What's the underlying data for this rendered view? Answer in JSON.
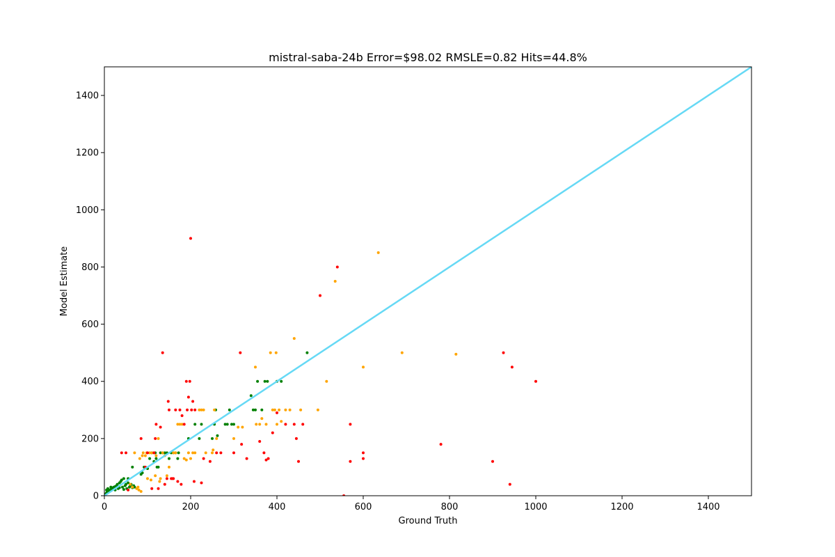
{
  "chart_data": {
    "type": "scatter",
    "title": "mistral-saba-24b Error=$98.02 RMSLE=0.82 Hits=44.8%",
    "xlabel": "Ground Truth",
    "ylabel": "Model Estimate",
    "xlim": [
      0,
      1500
    ],
    "ylim": [
      0,
      1500
    ],
    "xticks": [
      0,
      200,
      400,
      600,
      800,
      1000,
      1200,
      1400
    ],
    "yticks": [
      0,
      200,
      400,
      600,
      800,
      1000,
      1200,
      1400
    ],
    "grid": false,
    "reference_line": {
      "x": [
        0,
        1500
      ],
      "y": [
        0,
        1500
      ],
      "color": "#66d9f5"
    },
    "colors": {
      "green": "#008000",
      "orange": "#ffa500",
      "red": "#ff0000"
    },
    "points": {
      "green": [
        [
          2,
          5
        ],
        [
          4,
          8
        ],
        [
          6,
          12
        ],
        [
          8,
          15
        ],
        [
          10,
          18
        ],
        [
          12,
          20
        ],
        [
          15,
          22
        ],
        [
          18,
          25
        ],
        [
          20,
          28
        ],
        [
          22,
          30
        ],
        [
          25,
          32
        ],
        [
          28,
          35
        ],
        [
          30,
          40
        ],
        [
          32,
          25
        ],
        [
          35,
          45
        ],
        [
          38,
          50
        ],
        [
          40,
          55
        ],
        [
          42,
          30
        ],
        [
          45,
          60
        ],
        [
          48,
          35
        ],
        [
          50,
          40
        ],
        [
          52,
          25
        ],
        [
          55,
          45
        ],
        [
          58,
          30
        ],
        [
          60,
          35
        ],
        [
          62,
          40
        ],
        [
          65,
          28
        ],
        [
          68,
          35
        ],
        [
          70,
          30
        ],
        [
          5,
          20
        ],
        [
          8,
          25
        ],
        [
          15,
          30
        ],
        [
          25,
          20
        ],
        [
          35,
          28
        ],
        [
          45,
          22
        ],
        [
          55,
          60
        ],
        [
          65,
          100
        ],
        [
          85,
          75
        ],
        [
          88,
          80
        ],
        [
          92,
          100
        ],
        [
          100,
          95
        ],
        [
          105,
          130
        ],
        [
          110,
          150
        ],
        [
          115,
          120
        ],
        [
          118,
          150
        ],
        [
          120,
          130
        ],
        [
          122,
          100
        ],
        [
          125,
          100
        ],
        [
          130,
          150
        ],
        [
          135,
          150
        ],
        [
          140,
          150
        ],
        [
          145,
          150
        ],
        [
          150,
          130
        ],
        [
          155,
          150
        ],
        [
          160,
          150
        ],
        [
          165,
          150
        ],
        [
          170,
          130
        ],
        [
          172,
          150
        ],
        [
          195,
          200
        ],
        [
          210,
          250
        ],
        [
          220,
          200
        ],
        [
          225,
          250
        ],
        [
          250,
          200
        ],
        [
          255,
          250
        ],
        [
          258,
          300
        ],
        [
          262,
          210
        ],
        [
          280,
          250
        ],
        [
          285,
          250
        ],
        [
          290,
          300
        ],
        [
          295,
          250
        ],
        [
          300,
          250
        ],
        [
          340,
          350
        ],
        [
          345,
          300
        ],
        [
          350,
          300
        ],
        [
          355,
          400
        ],
        [
          365,
          300
        ],
        [
          372,
          400
        ],
        [
          378,
          400
        ],
        [
          400,
          400
        ],
        [
          410,
          400
        ],
        [
          470,
          500
        ]
      ],
      "orange": [
        [
          60,
          40
        ],
        [
          65,
          30
        ],
        [
          70,
          150
        ],
        [
          75,
          25
        ],
        [
          78,
          30
        ],
        [
          80,
          20
        ],
        [
          82,
          130
        ],
        [
          85,
          15
        ],
        [
          88,
          140
        ],
        [
          90,
          150
        ],
        [
          95,
          140
        ],
        [
          98,
          150
        ],
        [
          100,
          60
        ],
        [
          105,
          150
        ],
        [
          108,
          55
        ],
        [
          110,
          150
        ],
        [
          115,
          150
        ],
        [
          118,
          70
        ],
        [
          120,
          140
        ],
        [
          125,
          200
        ],
        [
          128,
          50
        ],
        [
          130,
          60
        ],
        [
          135,
          150
        ],
        [
          140,
          140
        ],
        [
          145,
          70
        ],
        [
          150,
          100
        ],
        [
          160,
          150
        ],
        [
          165,
          150
        ],
        [
          170,
          250
        ],
        [
          175,
          250
        ],
        [
          180,
          250
        ],
        [
          185,
          130
        ],
        [
          190,
          125
        ],
        [
          195,
          150
        ],
        [
          200,
          130
        ],
        [
          205,
          150
        ],
        [
          210,
          150
        ],
        [
          220,
          300
        ],
        [
          225,
          300
        ],
        [
          230,
          300
        ],
        [
          235,
          150
        ],
        [
          250,
          150
        ],
        [
          252,
          160
        ],
        [
          255,
          300
        ],
        [
          260,
          200
        ],
        [
          300,
          200
        ],
        [
          310,
          240
        ],
        [
          320,
          240
        ],
        [
          350,
          450
        ],
        [
          352,
          250
        ],
        [
          360,
          250
        ],
        [
          365,
          270
        ],
        [
          375,
          250
        ],
        [
          385,
          500
        ],
        [
          390,
          300
        ],
        [
          395,
          300
        ],
        [
          398,
          500
        ],
        [
          400,
          250
        ],
        [
          405,
          300
        ],
        [
          410,
          260
        ],
        [
          420,
          300
        ],
        [
          430,
          300
        ],
        [
          440,
          550
        ],
        [
          455,
          300
        ],
        [
          495,
          300
        ],
        [
          515,
          400
        ],
        [
          535,
          750
        ],
        [
          600,
          450
        ],
        [
          635,
          850
        ],
        [
          690,
          500
        ],
        [
          815,
          495
        ]
      ],
      "red": [
        [
          40,
          150
        ],
        [
          50,
          150
        ],
        [
          55,
          20
        ],
        [
          85,
          200
        ],
        [
          95,
          100
        ],
        [
          100,
          150
        ],
        [
          110,
          25
        ],
        [
          115,
          150
        ],
        [
          118,
          200
        ],
        [
          120,
          250
        ],
        [
          125,
          25
        ],
        [
          130,
          240
        ],
        [
          135,
          500
        ],
        [
          140,
          40
        ],
        [
          145,
          60
        ],
        [
          148,
          330
        ],
        [
          150,
          300
        ],
        [
          155,
          60
        ],
        [
          158,
          60
        ],
        [
          160,
          60
        ],
        [
          165,
          300
        ],
        [
          170,
          50
        ],
        [
          175,
          300
        ],
        [
          178,
          40
        ],
        [
          180,
          280
        ],
        [
          185,
          250
        ],
        [
          190,
          400
        ],
        [
          192,
          300
        ],
        [
          195,
          345
        ],
        [
          198,
          400
        ],
        [
          200,
          900
        ],
        [
          202,
          300
        ],
        [
          205,
          330
        ],
        [
          208,
          50
        ],
        [
          210,
          300
        ],
        [
          225,
          45
        ],
        [
          230,
          130
        ],
        [
          245,
          120
        ],
        [
          260,
          150
        ],
        [
          270,
          150
        ],
        [
          300,
          150
        ],
        [
          315,
          500
        ],
        [
          318,
          180
        ],
        [
          330,
          130
        ],
        [
          360,
          190
        ],
        [
          370,
          150
        ],
        [
          375,
          125
        ],
        [
          380,
          130
        ],
        [
          390,
          220
        ],
        [
          400,
          290
        ],
        [
          420,
          250
        ],
        [
          440,
          250
        ],
        [
          445,
          200
        ],
        [
          450,
          120
        ],
        [
          460,
          250
        ],
        [
          500,
          700
        ],
        [
          540,
          800
        ],
        [
          555,
          0
        ],
        [
          570,
          250
        ],
        [
          570,
          120
        ],
        [
          600,
          150
        ],
        [
          600,
          130
        ],
        [
          780,
          180
        ],
        [
          900,
          120
        ],
        [
          925,
          500
        ],
        [
          940,
          40
        ],
        [
          945,
          450
        ],
        [
          1000,
          400
        ]
      ]
    }
  }
}
